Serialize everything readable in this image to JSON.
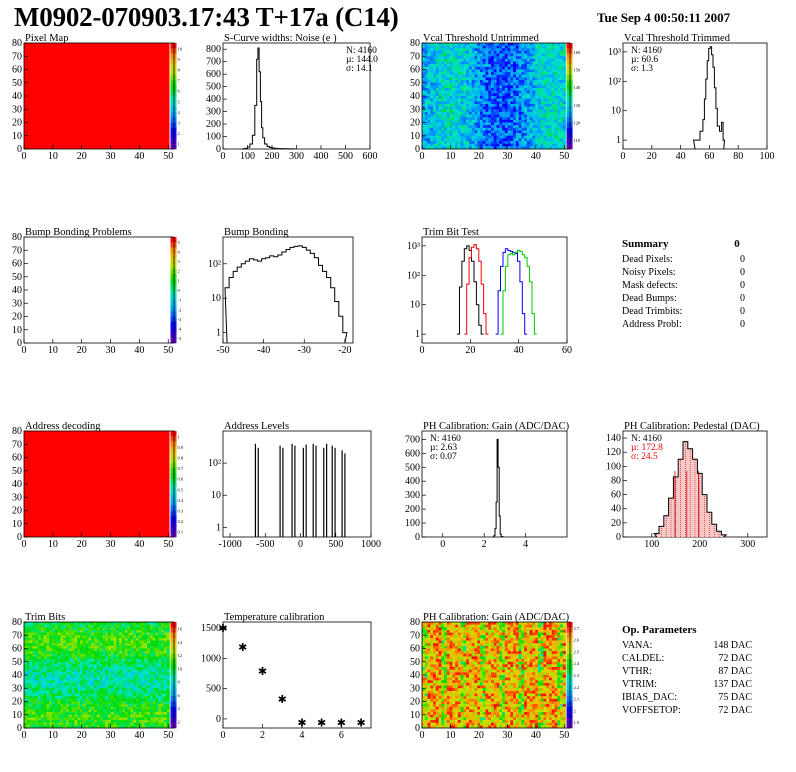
{
  "header": {
    "title": "M0902-070903.17:43 T+17a (C14)",
    "date": "Tue Sep  4 00:50:11 2007"
  },
  "panels": [
    {
      "id": "pixel-map",
      "title": "Pixel Map",
      "xticks": [
        "0",
        "10",
        "20",
        "30",
        "40",
        "50"
      ],
      "yticks": [
        "0",
        "10",
        "20",
        "30",
        "40",
        "50",
        "60",
        "70",
        "80"
      ],
      "zticks": [
        "1",
        "2",
        "3",
        "4",
        "5",
        "6",
        "7",
        "8",
        "9",
        "10"
      ]
    },
    {
      "id": "scurve",
      "title": "S-Curve widths: Noise (e )",
      "xticks": [
        "0",
        "100",
        "200",
        "300",
        "400",
        "500",
        "600"
      ],
      "yticks": [
        "0",
        "100",
        "200",
        "300",
        "400",
        "500",
        "600",
        "700",
        "800"
      ],
      "stats": [
        "N: 4160",
        "µ: 144.0",
        "σ: 14.1"
      ]
    },
    {
      "id": "vcal-untrimmed",
      "title": "Vcal Threshold Untrimmed",
      "xticks": [
        "0",
        "10",
        "20",
        "30",
        "40",
        "50"
      ],
      "yticks": [
        "0",
        "10",
        "20",
        "30",
        "40",
        "50",
        "60",
        "70",
        "80"
      ],
      "zticks": [
        "110",
        "120",
        "130",
        "140",
        "150",
        "160"
      ]
    },
    {
      "id": "vcal-trimmed",
      "title": "Vcal Threshold Trimmed",
      "xticks": [
        "0",
        "20",
        "40",
        "60",
        "80",
        "100"
      ],
      "yticks": [
        "1",
        "10",
        "10²",
        "10³"
      ],
      "stats": [
        "N: 4160",
        "µ: 60.6",
        "σ:  1.3"
      ]
    },
    {
      "id": "bump-problems",
      "title": "Bump Bonding Problems",
      "xticks": [
        "0",
        "10",
        "20",
        "30",
        "40",
        "50"
      ],
      "yticks": [
        "0",
        "10",
        "20",
        "30",
        "40",
        "50",
        "60",
        "70",
        "80"
      ],
      "zticks": [
        "-5",
        "-4",
        "-3",
        "-2",
        "-1",
        "0",
        "1",
        "2",
        "3",
        "4",
        "5"
      ]
    },
    {
      "id": "bump-bonding",
      "title": "Bump Bonding",
      "xticks": [
        "-50",
        "-40",
        "-30",
        "-20"
      ],
      "yticks": [
        "1",
        "10",
        "10²"
      ]
    },
    {
      "id": "trim-bit-test",
      "title": "Trim Bit Test",
      "xticks": [
        "0",
        "20",
        "40",
        "60"
      ],
      "yticks": [
        "1",
        "10",
        "10²",
        "10³"
      ]
    },
    {
      "id": "address-decoding",
      "title": "Address decoding",
      "xticks": [
        "0",
        "10",
        "20",
        "30",
        "40",
        "50"
      ],
      "yticks": [
        "0",
        "10",
        "20",
        "30",
        "40",
        "50",
        "60",
        "70",
        "80"
      ],
      "zticks": [
        "0.1",
        "0.2",
        "0.3",
        "0.4",
        "0.5",
        "0.6",
        "0.7",
        "0.8",
        "0.9",
        "1"
      ]
    },
    {
      "id": "address-levels",
      "title": "Address Levels",
      "xticks": [
        "-1000",
        "-500",
        "0",
        "500",
        "1000"
      ],
      "yticks": [
        "1",
        "10",
        "10²"
      ]
    },
    {
      "id": "ph-gain",
      "title": "PH Calibration: Gain (ADC/DAC)",
      "xticks": [
        "0",
        "2",
        "4"
      ],
      "yticks": [
        "0",
        "100",
        "200",
        "300",
        "400",
        "500",
        "600",
        "700"
      ],
      "stats": [
        "N: 4160",
        "µ: 2.63",
        "σ: 0.07"
      ]
    },
    {
      "id": "ph-pedestal",
      "title": "PH Calibration: Pedestal (DAC)",
      "xticks": [
        "100",
        "200",
        "300"
      ],
      "yticks": [
        "0",
        "20",
        "40",
        "60",
        "80",
        "100",
        "120",
        "140"
      ],
      "stats": [
        "N: 4160",
        "µ: 172.8",
        "σ: 24.5"
      ]
    },
    {
      "id": "trim-bits",
      "title": "Trim Bits",
      "xticks": [
        "0",
        "10",
        "20",
        "30",
        "40",
        "50"
      ],
      "yticks": [
        "0",
        "10",
        "20",
        "30",
        "40",
        "50",
        "60",
        "70",
        "80"
      ],
      "zticks": [
        "2",
        "4",
        "6",
        "8",
        "10",
        "12",
        "14",
        "16"
      ]
    },
    {
      "id": "temperature",
      "title": "Temperature calibration",
      "xticks": [
        "0",
        "2",
        "4",
        "6"
      ],
      "yticks": [
        "0",
        "500",
        "1000",
        "1500"
      ]
    },
    {
      "id": "ph-gain-map",
      "title": "PH Calibration: Gain (ADC/DAC)",
      "xticks": [
        "0",
        "10",
        "20",
        "30",
        "40",
        "50"
      ],
      "yticks": [
        "0",
        "10",
        "20",
        "30",
        "40",
        "50",
        "60",
        "70",
        "80"
      ],
      "zticks": [
        "1.9",
        "2",
        "2.1",
        "2.2",
        "2.3",
        "2.4",
        "2.5",
        "2.6",
        "2.7"
      ]
    }
  ],
  "summary": {
    "title": "Summary",
    "total": "0",
    "rows": [
      {
        "label": "Dead Pixels:",
        "value": "0"
      },
      {
        "label": "Noisy Pixels:",
        "value": "0"
      },
      {
        "label": "Mask defects:",
        "value": "0"
      },
      {
        "label": "Dead Bumps:",
        "value": "0"
      },
      {
        "label": "Dead Trimbits:",
        "value": "0"
      },
      {
        "label": "Address Probl:",
        "value": "0"
      }
    ]
  },
  "op_parameters": {
    "title": "Op. Parameters",
    "rows": [
      {
        "label": "VANA:",
        "value": "148 DAC"
      },
      {
        "label": "CALDEL:",
        "value": "72 DAC"
      },
      {
        "label": "VTHR:",
        "value": "87 DAC"
      },
      {
        "label": "VTRIM:",
        "value": "137 DAC"
      },
      {
        "label": "IBIAS_DAC:",
        "value": "75 DAC"
      },
      {
        "label": "VOFFSETOP:",
        "value": "72 DAC"
      }
    ]
  },
  "colors": {
    "hist": "#000000",
    "map_red": "#ff0000",
    "trim_red": "#ff0000",
    "trim_blue": "#0000ff",
    "trim_green": "#00cc00",
    "stat_red": "#ff0000"
  },
  "chart_data": [
    {
      "type": "heatmap",
      "name": "Pixel Map",
      "xlim": [
        0,
        52
      ],
      "ylim": [
        0,
        80
      ],
      "zlim": [
        1,
        10
      ],
      "uniform_value": 10
    },
    {
      "type": "bar",
      "name": "S-Curve widths: Noise",
      "xlim": [
        0,
        600
      ],
      "ylim": [
        0,
        850
      ],
      "x": [
        85,
        95,
        105,
        115,
        125,
        135,
        140,
        145,
        150,
        155,
        160,
        165,
        175,
        185,
        195,
        205,
        215,
        230,
        250,
        280
      ],
      "values": [
        2,
        5,
        15,
        40,
        110,
        350,
        720,
        810,
        620,
        380,
        170,
        90,
        40,
        20,
        12,
        8,
        5,
        3,
        2,
        1
      ]
    },
    {
      "type": "heatmap",
      "name": "Vcal Threshold Untrimmed",
      "xlim": [
        0,
        52
      ],
      "ylim": [
        0,
        80
      ],
      "zlim": [
        105,
        165
      ]
    },
    {
      "type": "bar",
      "name": "Vcal Threshold Trimmed",
      "log_y": true,
      "xlim": [
        0,
        100
      ],
      "ylim": [
        0.5,
        2000
      ],
      "x": [
        50,
        52,
        55,
        56,
        57,
        58,
        59,
        60,
        61,
        62,
        63,
        64,
        65,
        66,
        68,
        69,
        70
      ],
      "values": [
        1,
        1,
        2,
        5,
        25,
        120,
        500,
        1300,
        1500,
        800,
        300,
        60,
        12,
        3,
        2,
        4,
        1
      ]
    },
    {
      "type": "heatmap",
      "name": "Bump Bonding Problems",
      "xlim": [
        0,
        52
      ],
      "ylim": [
        0,
        80
      ],
      "zlim": [
        -5,
        5
      ]
    },
    {
      "type": "bar",
      "name": "Bump Bonding",
      "log_y": true,
      "xlim": [
        -50,
        -18
      ],
      "ylim": [
        0.5,
        600
      ],
      "x": [
        -49,
        -48,
        -47,
        -46,
        -45,
        -44,
        -43,
        -42,
        -41,
        -40,
        -39,
        -38,
        -37,
        -36,
        -35,
        -34,
        -33,
        -32,
        -31,
        -30,
        -29,
        -28,
        -27,
        -26,
        -25,
        -24,
        -23,
        -22,
        -21,
        -20
      ],
      "values": [
        20,
        40,
        60,
        80,
        100,
        120,
        140,
        130,
        120,
        140,
        150,
        170,
        160,
        180,
        220,
        260,
        300,
        320,
        330,
        300,
        250,
        200,
        150,
        90,
        60,
        40,
        20,
        8,
        3,
        1
      ]
    },
    {
      "type": "line",
      "name": "Trim Bit Test",
      "log_y": true,
      "xlim": [
        0,
        60
      ],
      "ylim": [
        0.5,
        2000
      ],
      "series": [
        {
          "color": "#000000",
          "x": [
            15,
            16,
            17,
            18,
            19,
            20,
            21,
            22,
            23,
            24,
            25
          ],
          "values": [
            1,
            40,
            300,
            800,
            1000,
            700,
            300,
            60,
            10,
            2,
            1
          ]
        },
        {
          "color": "#ff0000",
          "x": [
            18,
            19,
            20,
            21,
            22,
            23,
            24,
            25,
            26,
            27
          ],
          "values": [
            1,
            50,
            400,
            900,
            1100,
            800,
            300,
            50,
            5,
            1
          ]
        },
        {
          "color": "#0000ff",
          "x": [
            31,
            32,
            33,
            34,
            35,
            36,
            37,
            38,
            39,
            40,
            41,
            42,
            43
          ],
          "values": [
            1,
            30,
            200,
            600,
            800,
            700,
            650,
            600,
            550,
            300,
            60,
            5,
            1
          ]
        },
        {
          "color": "#00cc00",
          "x": [
            33,
            34,
            35,
            36,
            37,
            38,
            39,
            40,
            41,
            42,
            43,
            44,
            45,
            46,
            47
          ],
          "values": [
            1,
            30,
            200,
            500,
            550,
            500,
            600,
            700,
            650,
            500,
            400,
            200,
            60,
            5,
            1
          ]
        }
      ]
    },
    {
      "type": "heatmap",
      "name": "Address decoding",
      "xlim": [
        0,
        52
      ],
      "ylim": [
        0,
        80
      ],
      "zlim": [
        0,
        1
      ],
      "uniform_value": 1
    },
    {
      "type": "bar",
      "name": "Address Levels",
      "log_y": true,
      "xlim": [
        -1100,
        1000
      ],
      "ylim": [
        0.5,
        1000
      ],
      "x": [
        -640,
        -600,
        -290,
        -250,
        -120,
        -80,
        40,
        80,
        180,
        220,
        330,
        370,
        450,
        490,
        590,
        630
      ],
      "values": [
        400,
        300,
        350,
        300,
        400,
        350,
        300,
        380,
        400,
        350,
        300,
        400,
        350,
        300,
        250,
        200
      ]
    },
    {
      "type": "bar",
      "name": "PH Calibration: Gain",
      "xlim": [
        -1,
        6
      ],
      "ylim": [
        0,
        760
      ],
      "x": [
        2.45,
        2.5,
        2.55,
        2.6,
        2.65,
        2.7,
        2.75,
        2.8,
        2.85
      ],
      "values": [
        2,
        10,
        60,
        250,
        700,
        500,
        150,
        20,
        3
      ]
    },
    {
      "type": "bar",
      "name": "PH Calibration: Pedestal",
      "xlim": [
        40,
        340
      ],
      "ylim": [
        0,
        150
      ],
      "x": [
        110,
        120,
        130,
        140,
        150,
        160,
        170,
        180,
        190,
        200,
        210,
        220,
        230,
        240,
        250
      ],
      "values": [
        5,
        15,
        30,
        55,
        85,
        110,
        135,
        125,
        110,
        90,
        60,
        35,
        18,
        8,
        3
      ]
    },
    {
      "type": "heatmap",
      "name": "Trim Bits",
      "xlim": [
        0,
        52
      ],
      "ylim": [
        0,
        80
      ],
      "zlim": [
        1,
        16
      ]
    },
    {
      "type": "scatter",
      "name": "Temperature calibration",
      "xlim": [
        0,
        7.5
      ],
      "ylim": [
        -150,
        1600
      ],
      "x": [
        0,
        1,
        2,
        3,
        4,
        5,
        6,
        7
      ],
      "values": [
        1500,
        1190,
        790,
        330,
        -60,
        -60,
        -60,
        -60
      ]
    },
    {
      "type": "heatmap",
      "name": "PH Calibration: Gain map",
      "xlim": [
        0,
        52
      ],
      "ylim": [
        0,
        80
      ],
      "zlim": [
        1.9,
        2.75
      ]
    }
  ]
}
